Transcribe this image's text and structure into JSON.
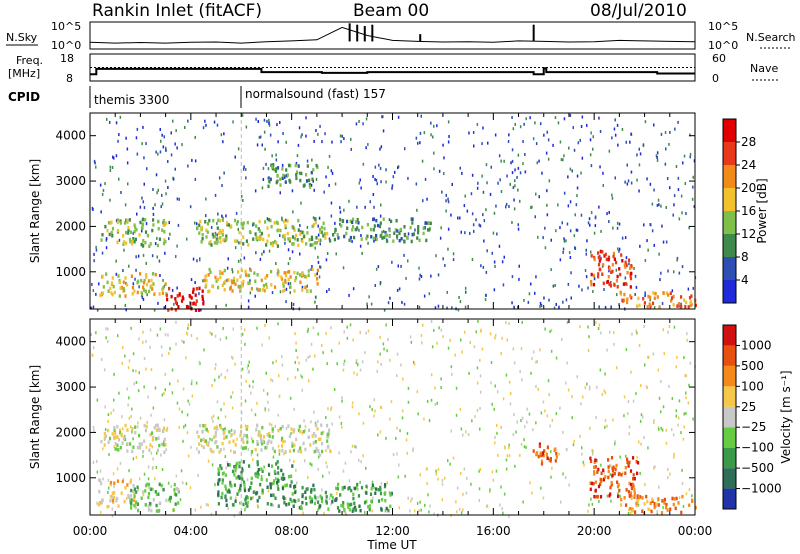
{
  "header": {
    "station": "Rankin Inlet (fitACF)",
    "beam": "Beam 00",
    "date": "08/Jul/2010"
  },
  "meta_panel": {
    "nsky_label": "N.Sky",
    "nsearch_label": "N.Search",
    "freq_label_1": "Freq.",
    "freq_label_2": "[MHz]",
    "nave_label": "Nave",
    "cpid_label": "CPID",
    "noise_ticks_left": [
      "10^5",
      "10^0"
    ],
    "noise_ticks_right": [
      "10^5",
      "10^0"
    ],
    "freq_ticks": [
      "18",
      "8"
    ],
    "nave_ticks": [
      "60",
      "0"
    ],
    "cpid_segments": [
      {
        "start_hour": 0,
        "label": "themis 3300"
      },
      {
        "start_hour": 6,
        "label": "normalsound (fast) 157"
      }
    ]
  },
  "chart_data": [
    {
      "type": "line",
      "title": "N.Sky / N.Search",
      "x": [
        0,
        1,
        2,
        3,
        4,
        5,
        6,
        7,
        8,
        9,
        10,
        11,
        12,
        13,
        14,
        15,
        16,
        17,
        18,
        19,
        20,
        21,
        22,
        23,
        24
      ],
      "series": [
        {
          "name": "N.Sky",
          "values": [
            0.25,
            0.22,
            0.24,
            0.22,
            0.25,
            0.26,
            0.22,
            0.27,
            0.3,
            0.34,
            0.8,
            0.5,
            0.32,
            0.28,
            0.26,
            0.27,
            0.25,
            0.3,
            0.28,
            0.26,
            0.27,
            0.32,
            0.3,
            0.28,
            0.27
          ]
        }
      ]
    },
    {
      "type": "line",
      "title": "Freq. / Nave",
      "x": [
        0,
        0.25,
        6,
        6.8,
        9,
        9.2,
        11,
        13,
        16,
        17.5,
        17.6,
        18,
        18.1,
        19.5,
        21,
        22.5,
        24
      ],
      "series": [
        {
          "name": "Freq.",
          "values": [
            10.5,
            12.5,
            12.5,
            11.3,
            11.3,
            11,
            11.3,
            11.3,
            11.3,
            11.3,
            10.5,
            12.7,
            11.3,
            11.3,
            11.3,
            10.8,
            10.8
          ]
        },
        {
          "name": "Nave",
          "values": [
            30,
            30,
            30,
            30,
            30,
            30,
            30,
            30,
            30,
            30,
            30,
            30,
            30,
            30,
            30,
            30,
            30
          ]
        }
      ]
    },
    {
      "type": "heatmap",
      "xlabel": "",
      "ylabel": "Slant Range [km]",
      "xlim": [
        0,
        24
      ],
      "ylim": [
        180,
        4500
      ],
      "y_ticks": [
        1000,
        2000,
        3000,
        4000
      ],
      "colorbar": {
        "label": "Power [dB]",
        "ticks": [
          "4",
          "8",
          "12",
          "16",
          "20",
          "24",
          "28"
        ],
        "colors": [
          "#1f2bd9",
          "#2d4fb3",
          "#3f8a4a",
          "#7fc04a",
          "#f2c12e",
          "#f28a1a",
          "#e83a1a",
          "#e00000"
        ]
      },
      "regions": [
        {
          "x": [
            0.4,
            3.0
          ],
          "y": [
            1600,
            2200
          ],
          "level": 3
        },
        {
          "x": [
            4.2,
            9.5
          ],
          "y": [
            1600,
            2200
          ],
          "level": 3
        },
        {
          "x": [
            9.5,
            13.5
          ],
          "y": [
            1700,
            2200
          ],
          "level": 2
        },
        {
          "x": [
            0.3,
            3.0
          ],
          "y": [
            500,
            1000
          ],
          "level": 4
        },
        {
          "x": [
            3.0,
            4.5
          ],
          "y": [
            180,
            700
          ],
          "level": 7
        },
        {
          "x": [
            4.5,
            9.0
          ],
          "y": [
            600,
            1100
          ],
          "level": 4
        },
        {
          "x": [
            19.8,
            21.5
          ],
          "y": [
            700,
            1500
          ],
          "level": 6
        },
        {
          "x": [
            21.0,
            24.0
          ],
          "y": [
            250,
            600
          ],
          "level": 5
        },
        {
          "x": [
            7.0,
            9.0
          ],
          "y": [
            2900,
            3400
          ],
          "level": 2
        }
      ]
    },
    {
      "type": "heatmap",
      "xlabel": "Time UT",
      "ylabel": "Slant Range [km]",
      "xlim": [
        0,
        24
      ],
      "ylim": [
        180,
        4500
      ],
      "x_ticks": [
        "00:00",
        "04:00",
        "08:00",
        "12:00",
        "16:00",
        "20:00",
        "00:00"
      ],
      "y_ticks": [
        1000,
        2000,
        3000,
        4000
      ],
      "colorbar": {
        "label": "Velocity [m s⁻¹]",
        "ticks": [
          "1000",
          "500",
          "100",
          "25",
          "−25",
          "−100",
          "−500",
          "−1000"
        ],
        "colors": [
          "#2233aa",
          "#2f6f57",
          "#3a9a4a",
          "#66cc44",
          "#c8c8c8",
          "#f5c84a",
          "#f58a1a",
          "#e85010",
          "#d21010"
        ]
      },
      "regions": [
        {
          "x": [
            0.4,
            3.0
          ],
          "y": [
            1600,
            2200
          ],
          "level": 4
        },
        {
          "x": [
            4.2,
            9.5
          ],
          "y": [
            1600,
            2200
          ],
          "level": 4
        },
        {
          "x": [
            0.3,
            1.8
          ],
          "y": [
            400,
            1000
          ],
          "level": 5
        },
        {
          "x": [
            1.5,
            3.5
          ],
          "y": [
            300,
            900
          ],
          "level": 3
        },
        {
          "x": [
            5.0,
            8.0
          ],
          "y": [
            400,
            1400
          ],
          "level": 2
        },
        {
          "x": [
            8.0,
            12.0
          ],
          "y": [
            300,
            900
          ],
          "level": 2
        },
        {
          "x": [
            19.8,
            21.7
          ],
          "y": [
            600,
            1500
          ],
          "level": 7
        },
        {
          "x": [
            21.0,
            24.0
          ],
          "y": [
            250,
            650
          ],
          "level": 6
        },
        {
          "x": [
            17.5,
            18.5
          ],
          "y": [
            1300,
            1800
          ],
          "level": 7
        }
      ]
    }
  ]
}
